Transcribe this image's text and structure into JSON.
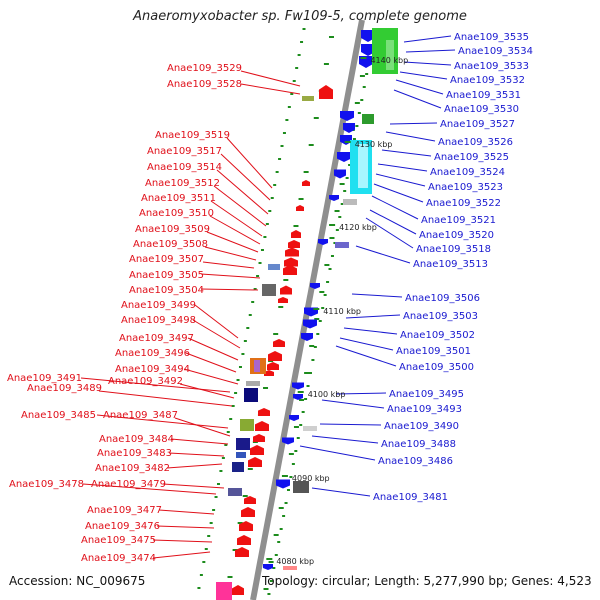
{
  "title": "Anaeromyxobacter sp. Fw109-5, complete genome",
  "footer": {
    "accession": "Accession: NC_009675",
    "summary": "Topology: circular; Length: 5,277,990 bp; Genes: 4,523"
  },
  "colors": {
    "left_label": "#e0101a",
    "right_label": "#1a1ad0",
    "reverse_strand_gene": "#ee1111",
    "forward_strand_gene": "#1111ee",
    "axis": "#8f8f8f",
    "tick": "#1d8c1d"
  },
  "scale_labels": [
    "4140 kbp",
    "4130 kbp",
    "4120 kbp",
    "4110 kbp",
    "4100 kbp",
    "4090 kbp",
    "4080 kbp"
  ],
  "left_labels": [
    "Anae109_3529",
    "Anae109_3528",
    "Anae109_3519",
    "Anae109_3517",
    "Anae109_3514",
    "Anae109_3512",
    "Anae109_3511",
    "Anae109_3510",
    "Anae109_3509",
    "Anae109_3508",
    "Anae109_3507",
    "Anae109_3505",
    "Anae109_3504",
    "Anae109_3499",
    "Anae109_3498",
    "Anae109_3497",
    "Anae109_3496",
    "Anae109_3494",
    "Anae109_3491",
    "Anae109_3492",
    "Anae109_3489",
    "Anae109_3485",
    "Anae109_3487",
    "Anae109_3484",
    "Anae109_3483",
    "Anae109_3482",
    "Anae109_3478",
    "Anae109_3479",
    "Anae109_3477",
    "Anae109_3476",
    "Anae109_3475",
    "Anae109_3474"
  ],
  "right_labels": [
    "Anae109_3535",
    "Anae109_3534",
    "Anae109_3533",
    "Anae109_3532",
    "Anae109_3531",
    "Anae109_3530",
    "Anae109_3527",
    "Anae109_3526",
    "Anae109_3525",
    "Anae109_3524",
    "Anae109_3523",
    "Anae109_3522",
    "Anae109_3521",
    "Anae109_3520",
    "Anae109_3518",
    "Anae109_3513",
    "Anae109_3506",
    "Anae109_3503",
    "Anae109_3502",
    "Anae109_3501",
    "Anae109_3500",
    "Anae109_3495",
    "Anae109_3493",
    "Anae109_3490",
    "Anae109_3488",
    "Anae109_3486",
    "Anae109_3481"
  ]
}
